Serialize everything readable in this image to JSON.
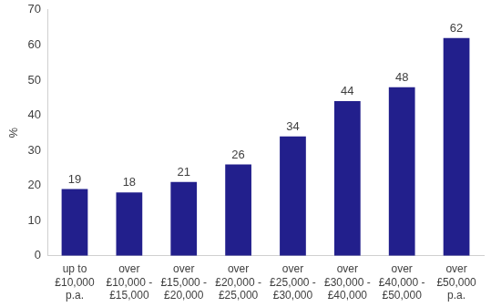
{
  "chart_data": {
    "type": "bar",
    "y_label": "%",
    "categories": [
      [
        "up to",
        "£10,000",
        "p.a."
      ],
      [
        "over",
        "£10,000 -",
        "£15,000"
      ],
      [
        "over",
        "£15,000 -",
        "£20,000"
      ],
      [
        "over",
        "£20,000 -",
        "£25,000"
      ],
      [
        "over",
        "£25,000 -",
        "£30,000"
      ],
      [
        "over",
        "£30,000 -",
        "£40,000"
      ],
      [
        "over",
        "£40,000 -",
        "£50,000"
      ],
      [
        "over",
        "£50,000",
        "p.a."
      ]
    ],
    "values": [
      19,
      18,
      21,
      26,
      34,
      44,
      48,
      62
    ],
    "color": "#221f8c",
    "ylim": [
      0,
      70
    ],
    "yticks": [
      0,
      10,
      20,
      30,
      40,
      50,
      60,
      70
    ],
    "grid": false,
    "data_labels": true
  }
}
